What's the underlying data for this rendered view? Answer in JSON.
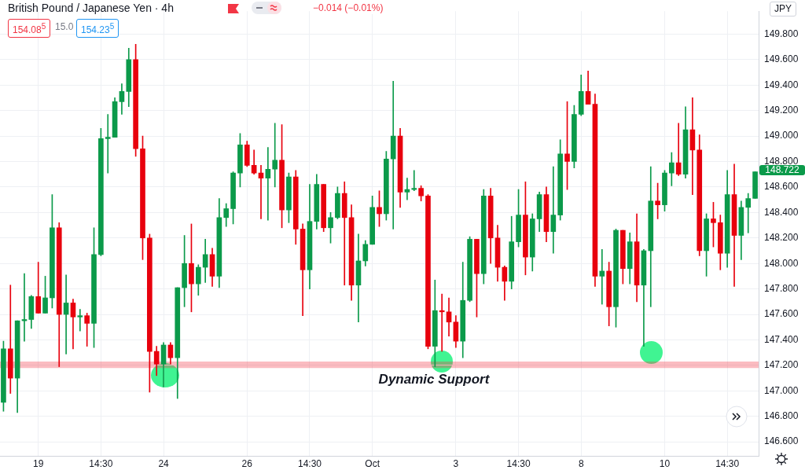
{
  "chart_data": {
    "type": "candlestick",
    "title": "British Pound / Japanese Yen · 4h",
    "categories": [
      null,
      null,
      null,
      null,
      null,
      "19",
      null,
      null,
      null,
      null,
      null,
      null,
      null,
      null,
      "14:30",
      null,
      null,
      null,
      null,
      null,
      null,
      null,
      null,
      "24",
      null,
      null,
      null,
      null,
      null,
      null,
      null,
      null,
      null,
      null,
      null,
      "26",
      null,
      null,
      null,
      null,
      null,
      null,
      null,
      null,
      "14:30",
      null,
      null,
      null,
      null,
      null,
      null,
      null,
      null,
      "Oct",
      null,
      null,
      null,
      null,
      null,
      null,
      null,
      null,
      null,
      null,
      null,
      "3",
      null,
      null,
      null,
      null,
      null,
      null,
      null,
      null,
      "14:30",
      null,
      null,
      null,
      null,
      null,
      null,
      null,
      null,
      "8",
      null,
      null,
      null,
      null,
      null,
      null,
      null,
      null,
      null,
      null,
      null,
      "10",
      null,
      null,
      null,
      null,
      null,
      null,
      null,
      null,
      "14:30",
      null,
      null,
      null,
      null
    ],
    "ohlc": [
      [
        146.91,
        147.39,
        146.84,
        147.33
      ],
      [
        147.33,
        147.83,
        146.98,
        147.1
      ],
      [
        147.1,
        147.55,
        146.83,
        147.55
      ],
      [
        147.55,
        147.92,
        147.39,
        147.56
      ],
      [
        147.56,
        147.75,
        147.49,
        147.74
      ],
      [
        147.74,
        148.01,
        147.61,
        147.61
      ],
      [
        147.61,
        147.9,
        147.61,
        147.73
      ],
      [
        147.73,
        148.54,
        147.65,
        148.28
      ],
      [
        148.28,
        148.32,
        147.19,
        147.6
      ],
      [
        147.6,
        147.91,
        147.29,
        147.69
      ],
      [
        147.69,
        147.72,
        147.33,
        147.58
      ],
      [
        147.58,
        147.64,
        147.47,
        147.59
      ],
      [
        147.59,
        147.61,
        147.35,
        147.53
      ],
      [
        147.53,
        148.28,
        147.34,
        148.07
      ],
      [
        148.07,
        149.06,
        148.06,
        148.98
      ],
      [
        148.98,
        149.17,
        148.71,
        148.99
      ],
      [
        148.99,
        149.3,
        148.99,
        149.27
      ],
      [
        149.27,
        149.41,
        149.17,
        149.35
      ],
      [
        149.35,
        149.69,
        149.23,
        149.6
      ],
      [
        149.6,
        149.72,
        148.84,
        148.9
      ],
      [
        148.9,
        149.0,
        148.03,
        148.2
      ],
      [
        148.2,
        148.23,
        146.99,
        147.31
      ],
      [
        147.31,
        147.35,
        147.12,
        147.21
      ],
      [
        147.21,
        147.38,
        147.03,
        147.36
      ],
      [
        147.36,
        147.38,
        147.21,
        147.26
      ],
      [
        147.26,
        147.81,
        146.94,
        147.81
      ],
      [
        147.81,
        148.22,
        147.66,
        148.0
      ],
      [
        148.0,
        148.31,
        147.62,
        147.84
      ],
      [
        147.84,
        147.99,
        147.75,
        147.97
      ],
      [
        147.97,
        148.19,
        147.85,
        148.07
      ],
      [
        148.07,
        148.12,
        147.82,
        147.9
      ],
      [
        147.9,
        148.51,
        147.81,
        148.36
      ],
      [
        148.36,
        148.47,
        148.29,
        148.43
      ],
      [
        148.43,
        148.72,
        148.31,
        148.71
      ],
      [
        148.71,
        149.02,
        148.6,
        148.93
      ],
      [
        148.93,
        148.96,
        148.76,
        148.77
      ],
      [
        148.77,
        148.89,
        148.7,
        148.71
      ],
      [
        148.71,
        148.77,
        148.35,
        148.67
      ],
      [
        148.67,
        148.91,
        148.34,
        148.74
      ],
      [
        148.74,
        149.1,
        148.6,
        148.81
      ],
      [
        148.81,
        149.09,
        148.28,
        148.42
      ],
      [
        148.42,
        148.71,
        148.32,
        148.68
      ],
      [
        148.68,
        148.73,
        148.15,
        148.27
      ],
      [
        148.27,
        148.31,
        147.59,
        147.95
      ],
      [
        147.95,
        148.62,
        147.8,
        148.33
      ],
      [
        148.33,
        148.7,
        148.27,
        148.62
      ],
      [
        148.62,
        148.62,
        148.25,
        148.28
      ],
      [
        148.28,
        148.4,
        148.16,
        148.36
      ],
      [
        148.36,
        148.6,
        148.35,
        148.55
      ],
      [
        148.55,
        148.64,
        147.83,
        148.36
      ],
      [
        148.36,
        148.46,
        147.71,
        147.83
      ],
      [
        147.83,
        148.23,
        147.54,
        148.02
      ],
      [
        148.02,
        148.18,
        147.98,
        148.15
      ],
      [
        148.15,
        148.53,
        148.15,
        148.44
      ],
      [
        148.44,
        148.57,
        148.29,
        148.39
      ],
      [
        148.39,
        148.88,
        148.34,
        148.82
      ],
      [
        148.82,
        149.43,
        148.27,
        149.0
      ],
      [
        149.0,
        149.06,
        148.44,
        148.56
      ],
      [
        148.56,
        148.67,
        148.5,
        148.58
      ],
      [
        148.58,
        148.73,
        148.57,
        148.59
      ],
      [
        148.59,
        148.61,
        148.49,
        148.53
      ],
      [
        148.53,
        148.54,
        147.33,
        147.35
      ],
      [
        147.35,
        147.87,
        147.19,
        147.63
      ],
      [
        147.63,
        147.76,
        147.31,
        147.62
      ],
      [
        147.62,
        147.73,
        147.43,
        147.54
      ],
      [
        147.54,
        147.59,
        147.34,
        147.39
      ],
      [
        147.39,
        148.01,
        147.26,
        147.71
      ],
      [
        147.71,
        148.21,
        147.7,
        148.19
      ],
      [
        148.19,
        148.19,
        147.58,
        147.92
      ],
      [
        147.92,
        148.58,
        147.84,
        148.53
      ],
      [
        148.53,
        148.59,
        148.0,
        148.2
      ],
      [
        148.2,
        148.3,
        147.86,
        147.97
      ],
      [
        147.97,
        147.98,
        147.71,
        147.86
      ],
      [
        147.86,
        148.37,
        147.8,
        148.17
      ],
      [
        148.17,
        148.58,
        148.13,
        148.38
      ],
      [
        148.38,
        148.64,
        147.91,
        148.05
      ],
      [
        148.05,
        148.39,
        147.94,
        148.35
      ],
      [
        148.35,
        148.56,
        148.25,
        148.54
      ],
      [
        148.54,
        148.6,
        148.17,
        148.25
      ],
      [
        148.25,
        148.76,
        148.08,
        148.38
      ],
      [
        148.38,
        148.97,
        148.34,
        148.86
      ],
      [
        148.86,
        149.27,
        148.58,
        148.8
      ],
      [
        148.8,
        149.24,
        148.75,
        149.17
      ],
      [
        149.17,
        149.48,
        149.16,
        149.35
      ],
      [
        149.35,
        149.51,
        149.25,
        149.25
      ],
      [
        149.25,
        149.33,
        147.82,
        147.9
      ],
      [
        147.9,
        148.11,
        147.68,
        147.94
      ],
      [
        147.94,
        148.01,
        147.51,
        147.66
      ],
      [
        147.66,
        148.27,
        147.5,
        148.26
      ],
      [
        148.26,
        148.26,
        147.84,
        147.96
      ],
      [
        147.96,
        148.24,
        147.84,
        148.17
      ],
      [
        148.17,
        148.39,
        147.7,
        147.83
      ],
      [
        147.83,
        148.11,
        147.35,
        148.1
      ],
      [
        148.1,
        148.76,
        147.66,
        148.49
      ],
      [
        148.49,
        148.63,
        148.35,
        148.46
      ],
      [
        148.46,
        148.73,
        148.41,
        148.71
      ],
      [
        148.71,
        148.87,
        148.61,
        148.79
      ],
      [
        148.79,
        149.1,
        148.69,
        148.7
      ],
      [
        148.7,
        149.23,
        148.67,
        149.05
      ],
      [
        149.05,
        149.3,
        148.54,
        148.89
      ],
      [
        148.89,
        149.01,
        148.06,
        148.1
      ],
      [
        148.1,
        148.39,
        147.9,
        148.35
      ],
      [
        148.35,
        148.48,
        148.13,
        148.32
      ],
      [
        148.32,
        148.38,
        147.95,
        148.08
      ],
      [
        148.08,
        148.73,
        147.97,
        148.54
      ],
      [
        148.54,
        148.78,
        147.82,
        148.22
      ],
      [
        148.22,
        148.49,
        148.03,
        148.44
      ],
      [
        148.44,
        148.55,
        148.24,
        148.51
      ],
      [
        148.51,
        148.72,
        148.51,
        148.72
      ]
    ],
    "colors": [
      "#0b9a4a",
      "#e8000d",
      "#0b9a4a",
      "#0b9a4a",
      "#0b9a4a",
      "#e8000d",
      "#0b9a4a",
      "#0b9a4a",
      "#e8000d",
      "#0b9a4a",
      "#e8000d",
      "#0b9a4a",
      "#e8000d",
      "#0b9a4a",
      "#0b9a4a",
      "#0b9a4a",
      "#0b9a4a",
      "#0b9a4a",
      "#0b9a4a",
      "#e8000d",
      "#e8000d",
      "#e8000d",
      "#e8000d",
      "#0b9a4a",
      "#e8000d",
      "#0b9a4a",
      "#0b9a4a",
      "#e8000d",
      "#0b9a4a",
      "#0b9a4a",
      "#e8000d",
      "#0b9a4a",
      "#0b9a4a",
      "#0b9a4a",
      "#0b9a4a",
      "#e8000d",
      "#e8000d",
      "#e8000d",
      "#0b9a4a",
      "#0b9a4a",
      "#e8000d",
      "#0b9a4a",
      "#e8000d",
      "#e8000d",
      "#0b9a4a",
      "#0b9a4a",
      "#e8000d",
      "#0b9a4a",
      "#0b9a4a",
      "#e8000d",
      "#e8000d",
      "#0b9a4a",
      "#0b9a4a",
      "#0b9a4a",
      "#e8000d",
      "#0b9a4a",
      "#0b9a4a",
      "#e8000d",
      "#0b9a4a",
      "#0b9a4a",
      "#e8000d",
      "#e8000d",
      "#0b9a4a",
      "#e8000d",
      "#e8000d",
      "#e8000d",
      "#0b9a4a",
      "#0b9a4a",
      "#e8000d",
      "#0b9a4a",
      "#e8000d",
      "#e8000d",
      "#e8000d",
      "#0b9a4a",
      "#0b9a4a",
      "#e8000d",
      "#0b9a4a",
      "#0b9a4a",
      "#e8000d",
      "#0b9a4a",
      "#0b9a4a",
      "#e8000d",
      "#0b9a4a",
      "#0b9a4a",
      "#e8000d",
      "#e8000d",
      "#0b9a4a",
      "#e8000d",
      "#0b9a4a",
      "#e8000d",
      "#0b9a4a",
      "#e8000d",
      "#0b9a4a",
      "#0b9a4a",
      "#e8000d",
      "#0b9a4a",
      "#0b9a4a",
      "#e8000d",
      "#0b9a4a",
      "#e8000d",
      "#e8000d",
      "#0b9a4a",
      "#e8000d",
      "#e8000d",
      "#0b9a4a",
      "#e8000d",
      "#0b9a4a",
      "#0b9a4a",
      "#0b9a4a"
    ],
    "ylim": [
      146.49,
      149.98
    ],
    "yticks": [
      {
        "value": 146.6,
        "label": "146.600"
      },
      {
        "value": 146.8,
        "label": "146.800"
      },
      {
        "value": 147,
        "label": "147.000"
      },
      {
        "value": 147.2,
        "label": "147.200"
      },
      {
        "value": 147.4,
        "label": "147.400"
      },
      {
        "value": 147.6,
        "label": "147.600"
      },
      {
        "value": 147.8,
        "label": "147.800"
      },
      {
        "value": 148,
        "label": "148.000"
      },
      {
        "value": 148.2,
        "label": "148.200"
      },
      {
        "value": 148.4,
        "label": "148.400"
      },
      {
        "value": 148.6,
        "label": "148.600"
      },
      {
        "value": 148.8,
        "label": "148.800"
      },
      {
        "value": 149,
        "label": "149.000"
      },
      {
        "value": 149.2,
        "label": "149.200"
      },
      {
        "value": 149.4,
        "label": "149.400"
      },
      {
        "value": 149.6,
        "label": "149.600"
      },
      {
        "value": 149.8,
        "label": "149.800"
      }
    ],
    "bands": [
      {
        "axis": "y",
        "from": 147.18,
        "to": 147.23,
        "label": "Dynamic Support",
        "color": "#f23645"
      }
    ],
    "annotations": [
      "154.08$^{5}$",
      "15.0",
      "154.23$^{5}$",
      "−0.014 (−0.01%)",
      "JPY",
      "148.722"
    ],
    "grid": true
  }
}
